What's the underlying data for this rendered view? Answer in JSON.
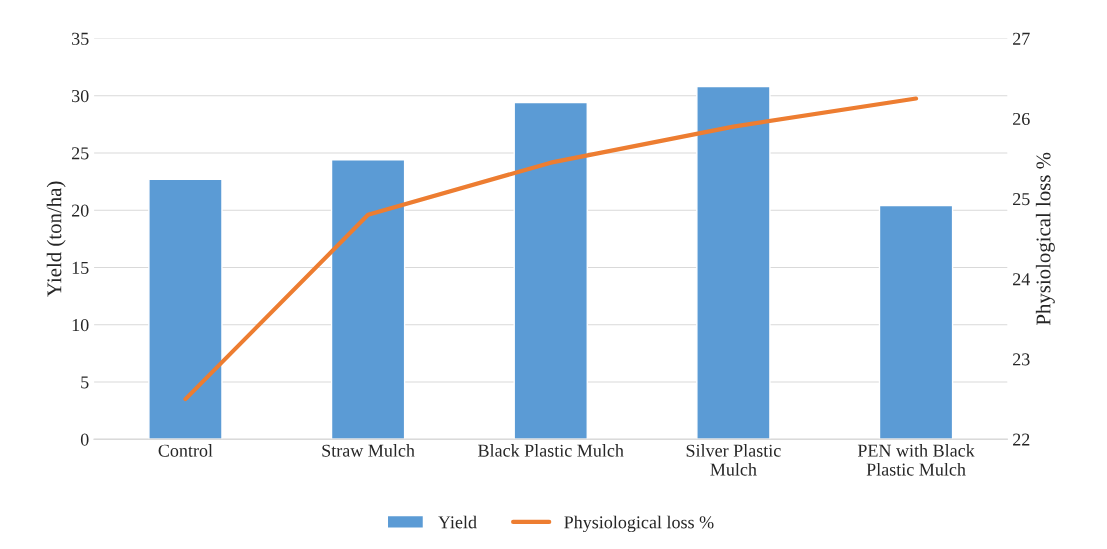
{
  "chart_data": {
    "type": "bar",
    "xlabel": null,
    "ylabel": "Yield (ton/ha)",
    "y2label": "Physiological loss %",
    "categories": [
      "Control",
      "Straw Mulch",
      "Black Plastic Mulch",
      "Silver Plastic\nMulch",
      "PEN with Black\nPlastic Mulch"
    ],
    "series": [
      {
        "name": "Yield",
        "color": "#5b9bd5",
        "values": [
          22.7,
          24.4,
          29.4,
          30.8,
          20.4
        ]
      },
      {
        "name": "Physiological loss %",
        "type": "line",
        "axis": "y2",
        "color": "#ed7d31",
        "values": [
          22.5,
          24.8,
          25.45,
          25.9,
          26.25
        ]
      }
    ],
    "ylim": [
      0,
      35
    ],
    "yticks": [
      0,
      5,
      10,
      15,
      20,
      25,
      30,
      35
    ],
    "y2lim": [
      22,
      27
    ],
    "y2ticks": [
      22,
      23,
      24,
      25,
      26,
      27
    ],
    "grid": "y",
    "legend": "bottom",
    "marker": "none",
    "line_style": "solid"
  }
}
